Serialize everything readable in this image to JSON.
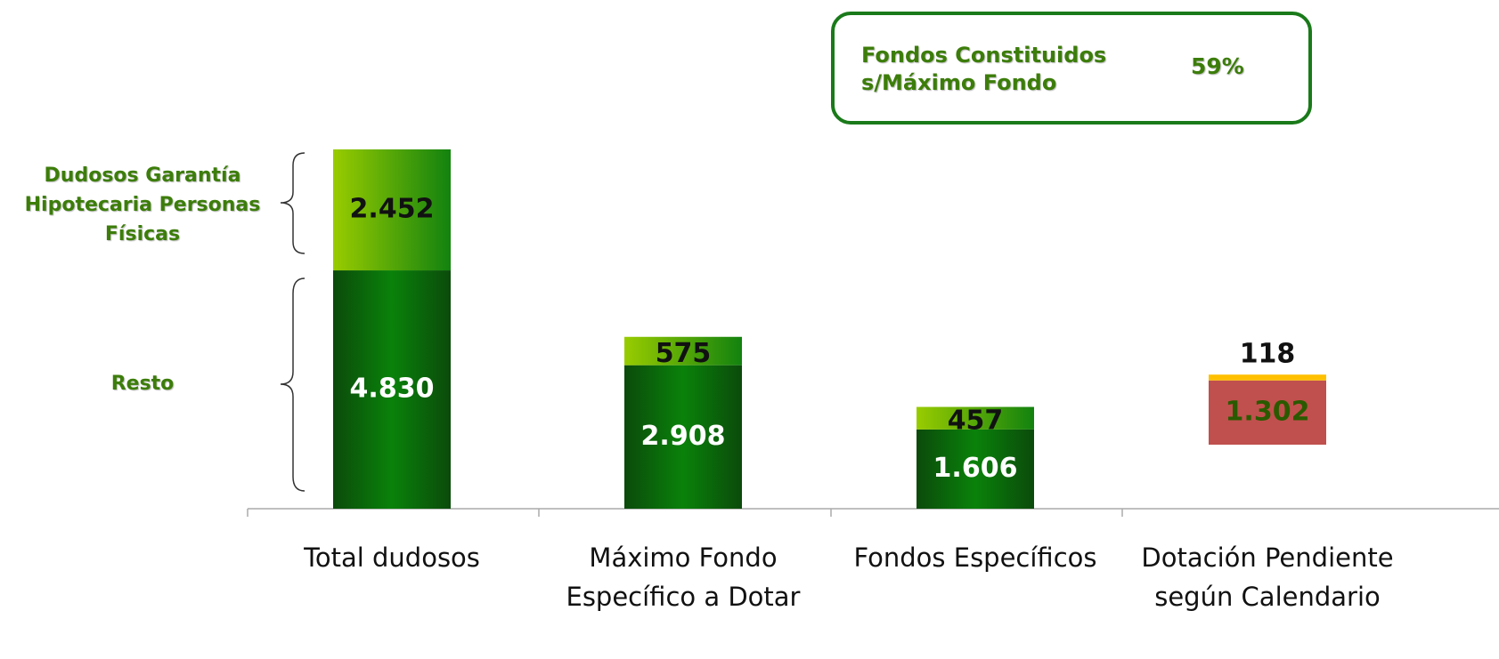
{
  "chart_data": {
    "type": "stacked_bar",
    "categories": [
      "Total dudosos",
      "Máximo Fondo Específico a Dotar",
      "Fondos Específicos",
      "Dotación Pendiente según Calendario"
    ],
    "series": [
      {
        "name": "Resto",
        "color": "#0a820a",
        "values": [
          4830,
          2908,
          1606,
          null
        ],
        "value_labels": [
          "4.830",
          "2.908",
          "1.606",
          null
        ]
      },
      {
        "name": "Dudosos Garantía Hipotecaria Personas Físicas",
        "color": "#99cc00",
        "values": [
          2452,
          575,
          457,
          null
        ],
        "value_labels": [
          "2.452",
          "575",
          "457",
          null
        ]
      },
      {
        "color": "#c0504d",
        "values": [
          null,
          null,
          null,
          1302
        ],
        "value_labels": [
          null,
          null,
          null,
          "1.302"
        ]
      },
      {
        "color": "#ffc000",
        "values": [
          null,
          null,
          null,
          118
        ],
        "value_labels": [
          null,
          null,
          null,
          "118"
        ]
      }
    ],
    "annotation": {
      "lines": [
        "Fondos Constituidos",
        "s/Máximo Fondo"
      ],
      "value": "59%"
    }
  }
}
